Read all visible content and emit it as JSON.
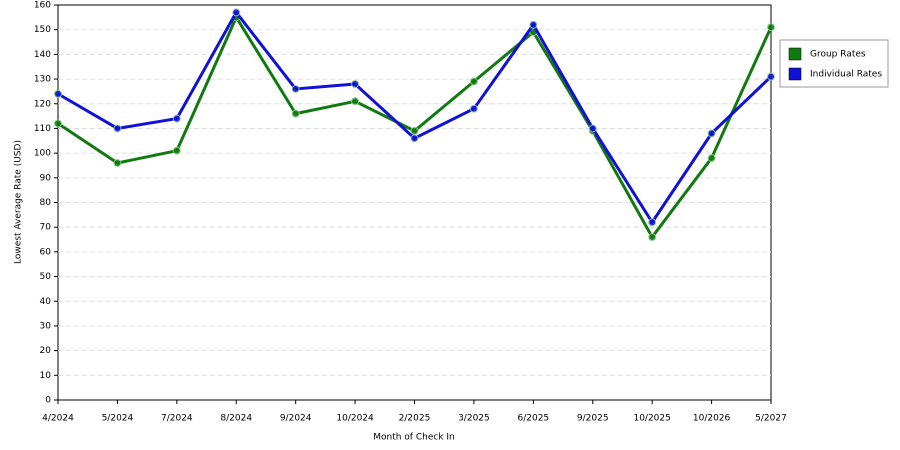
{
  "chart_data": {
    "type": "line",
    "x_label": "Month of Check In",
    "y_label": "Lowest Average Rate (USD)",
    "categories": [
      "4/2024",
      "5/2024",
      "7/2024",
      "8/2024",
      "9/2024",
      "10/2024",
      "2/2025",
      "3/2025",
      "6/2025",
      "9/2025",
      "10/2025",
      "10/2026",
      "5/2027"
    ],
    "series": [
      {
        "name": "Group Rates",
        "color": "#107a10",
        "values": [
          112,
          96,
          101,
          155,
          116,
          121,
          109,
          129,
          149,
          109,
          66,
          98,
          151
        ]
      },
      {
        "name": "Individual Rates",
        "color": "#1010d8",
        "values": [
          124,
          110,
          114,
          157,
          126,
          128,
          106,
          118,
          152,
          110,
          72,
          108,
          131
        ]
      }
    ],
    "ylim": [
      0,
      160
    ],
    "yticks": [
      0,
      10,
      20,
      30,
      40,
      50,
      60,
      70,
      80,
      90,
      100,
      110,
      120,
      130,
      140,
      150,
      160
    ],
    "grid": true,
    "legend": "right"
  }
}
